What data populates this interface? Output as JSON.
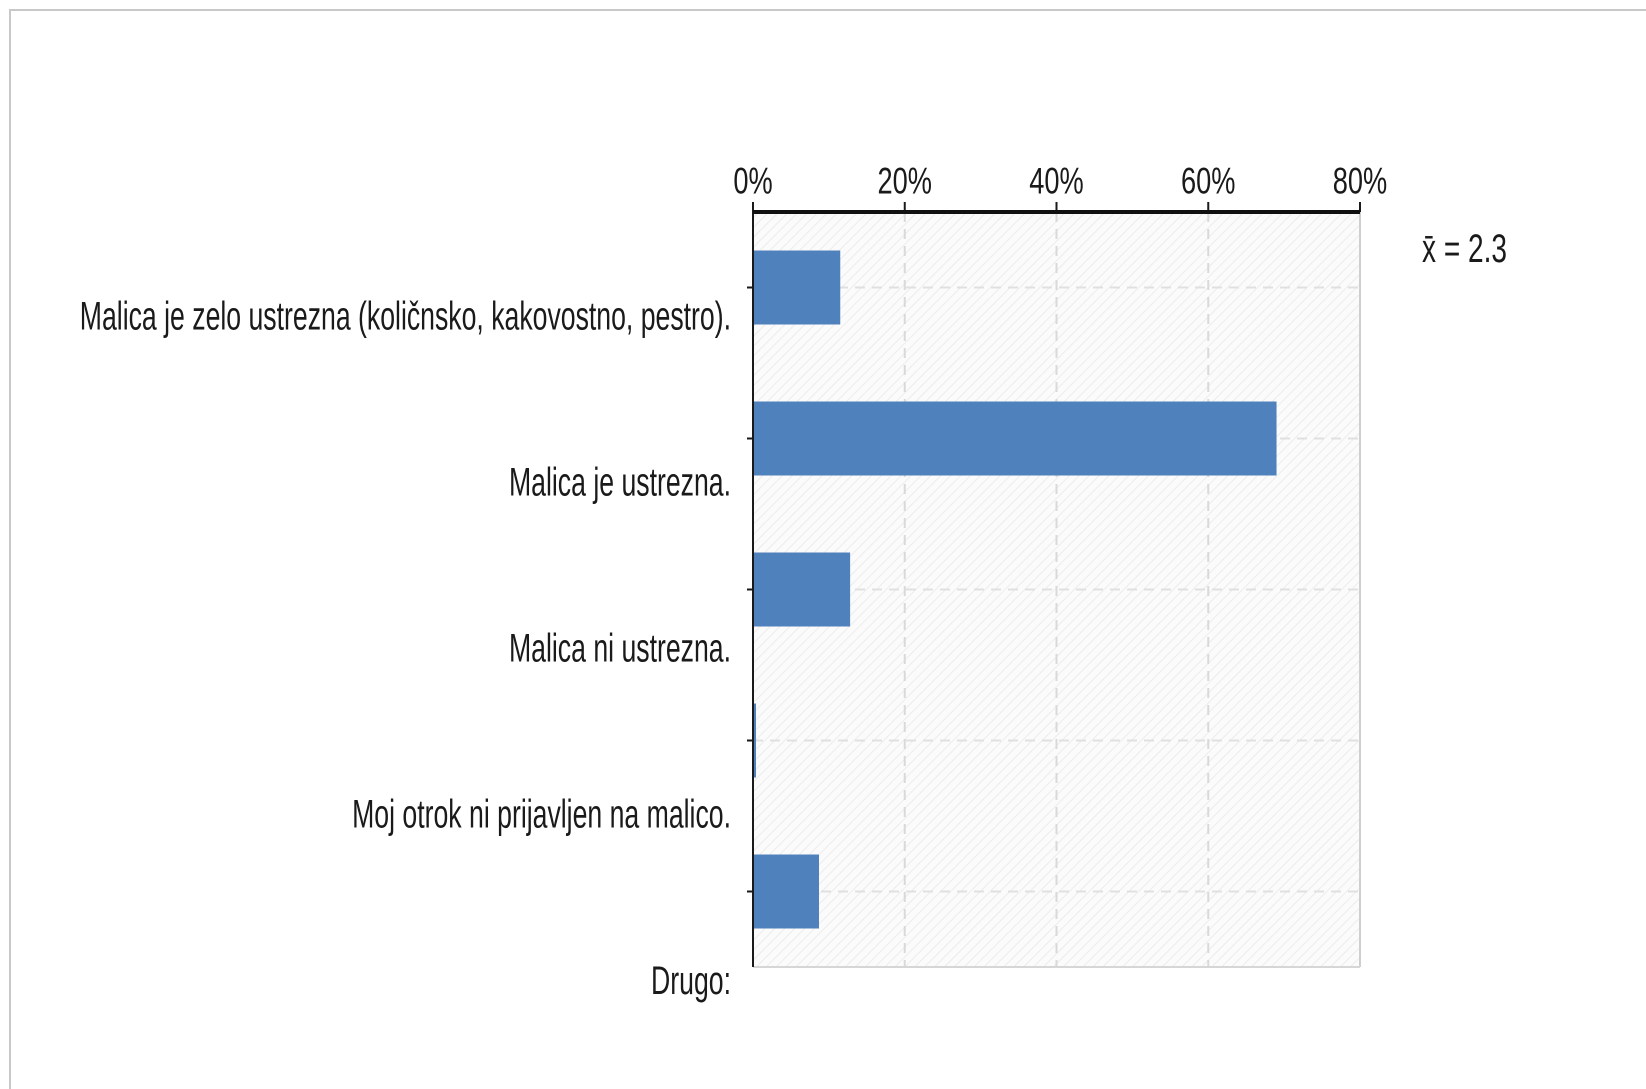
{
  "chart_data": {
    "type": "bar",
    "orientation": "horizontal",
    "categories": [
      "Malica je zelo ustrezna (količnsko, kakovostno, pestro).",
      "Malica je ustrezna.",
      "Malica ni ustrezna.",
      "Moj otrok ni prijavljen na malico.",
      "Drugo:"
    ],
    "values": [
      11.5,
      69,
      12.8,
      0.3,
      8.7
    ],
    "x_ticks": [
      "0%",
      "20%",
      "40%",
      "60%",
      "80%"
    ],
    "xlim": [
      0,
      80
    ],
    "axis_position": "top",
    "grid": true,
    "bar_color": "#4f81bd",
    "mean_label": "x̄ = 2.3"
  }
}
